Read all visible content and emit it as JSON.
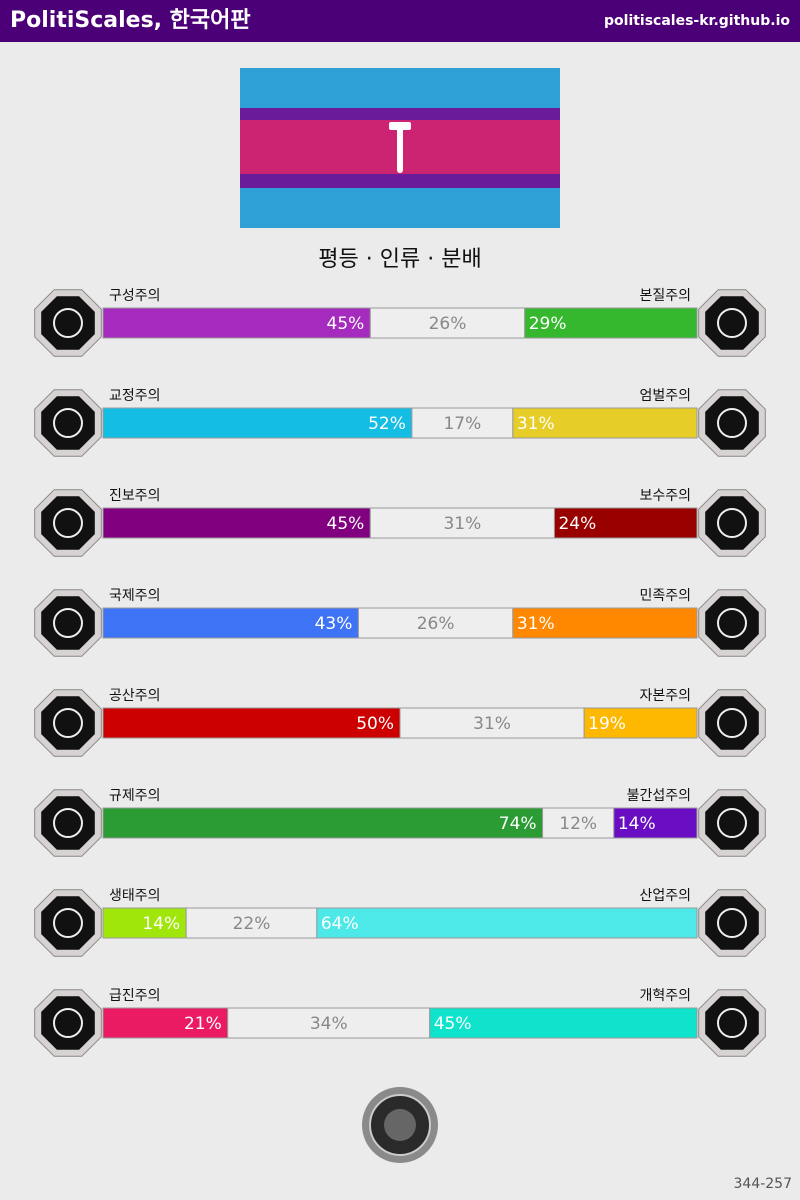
{
  "header": {
    "title": "PolitiScales, 한국어판",
    "url": "politiscales-kr.github.io"
  },
  "slogan": "평등 · 인류 · 분배",
  "axes": [
    {
      "left": "구성주의",
      "right": "본질주의",
      "values": [
        45,
        26,
        29
      ],
      "value_labels": [
        "45%",
        "26%",
        "29%"
      ],
      "colors": [
        "#a42bbd",
        "#eeeeee",
        "#35b82e"
      ]
    },
    {
      "left": "교정주의",
      "right": "엄벌주의",
      "values": [
        52,
        17,
        31
      ],
      "value_labels": [
        "52%",
        "17%",
        "31%"
      ],
      "colors": [
        "#14bde3",
        "#eeeeee",
        "#e6cd27"
      ]
    },
    {
      "left": "진보주의",
      "right": "보수주의",
      "values": [
        45,
        31,
        24
      ],
      "value_labels": [
        "45%",
        "31%",
        "24%"
      ],
      "colors": [
        "#800080",
        "#eeeeee",
        "#990000"
      ]
    },
    {
      "left": "국제주의",
      "right": "민족주의",
      "values": [
        43,
        26,
        31
      ],
      "value_labels": [
        "43%",
        "26%",
        "31%"
      ],
      "colors": [
        "#3f73f5",
        "#eeeeee",
        "#ff8800"
      ]
    },
    {
      "left": "공산주의",
      "right": "자본주의",
      "values": [
        50,
        31,
        19
      ],
      "value_labels": [
        "50%",
        "31%",
        "19%"
      ],
      "colors": [
        "#cc0000",
        "#eeeeee",
        "#ffb800"
      ]
    },
    {
      "left": "규제주의",
      "right": "불간섭주의",
      "values": [
        74,
        12,
        14
      ],
      "value_labels": [
        "74%",
        "12%",
        "14%"
      ],
      "colors": [
        "#2b9c33",
        "#eeeeee",
        "#6a0ec4"
      ]
    },
    {
      "left": "생태주의",
      "right": "산업주의",
      "values": [
        14,
        22,
        64
      ],
      "value_labels": [
        "14%",
        "22%",
        "64%"
      ],
      "colors": [
        "#a0e60a",
        "#eeeeee",
        "#4de8e8"
      ]
    },
    {
      "left": "급진주의",
      "right": "개혁주의",
      "values": [
        21,
        34,
        45
      ],
      "value_labels": [
        "21%",
        "34%",
        "45%"
      ],
      "colors": [
        "#ea1a63",
        "#eeeeee",
        "#0fe3cc"
      ]
    }
  ],
  "footer": "344-257"
}
